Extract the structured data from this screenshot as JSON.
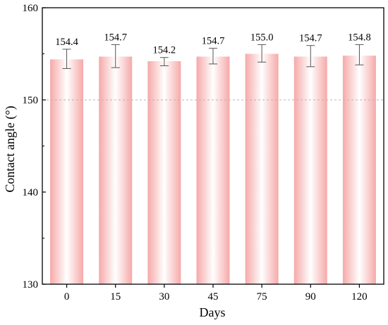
{
  "chart_data": {
    "type": "bar",
    "categories": [
      "0",
      "15",
      "30",
      "45",
      "75",
      "90",
      "120"
    ],
    "values": [
      154.4,
      154.7,
      154.2,
      154.7,
      155.0,
      154.7,
      154.8
    ],
    "error_low": [
      153.4,
      153.5,
      153.7,
      153.9,
      154.1,
      153.6,
      153.8
    ],
    "error_high": [
      155.5,
      156.0,
      154.6,
      155.6,
      156.0,
      155.9,
      156.0
    ],
    "data_labels": [
      "154.4",
      "154.7",
      "154.2",
      "154.7",
      "155.0",
      "154.7",
      "154.8"
    ],
    "title": "",
    "xlabel": "Days",
    "ylabel": "Contact angle (°)",
    "ylim": [
      130,
      160
    ],
    "yticks": [
      130,
      140,
      150,
      160
    ],
    "reference_line": 150,
    "grid": false,
    "legend": "none",
    "colors": {
      "bar_center": "#ffffff",
      "bar_edge": "#f6a9a9",
      "error_bar": "#555555",
      "reference_line": "#b5b5b5",
      "axis": "#000000"
    }
  }
}
